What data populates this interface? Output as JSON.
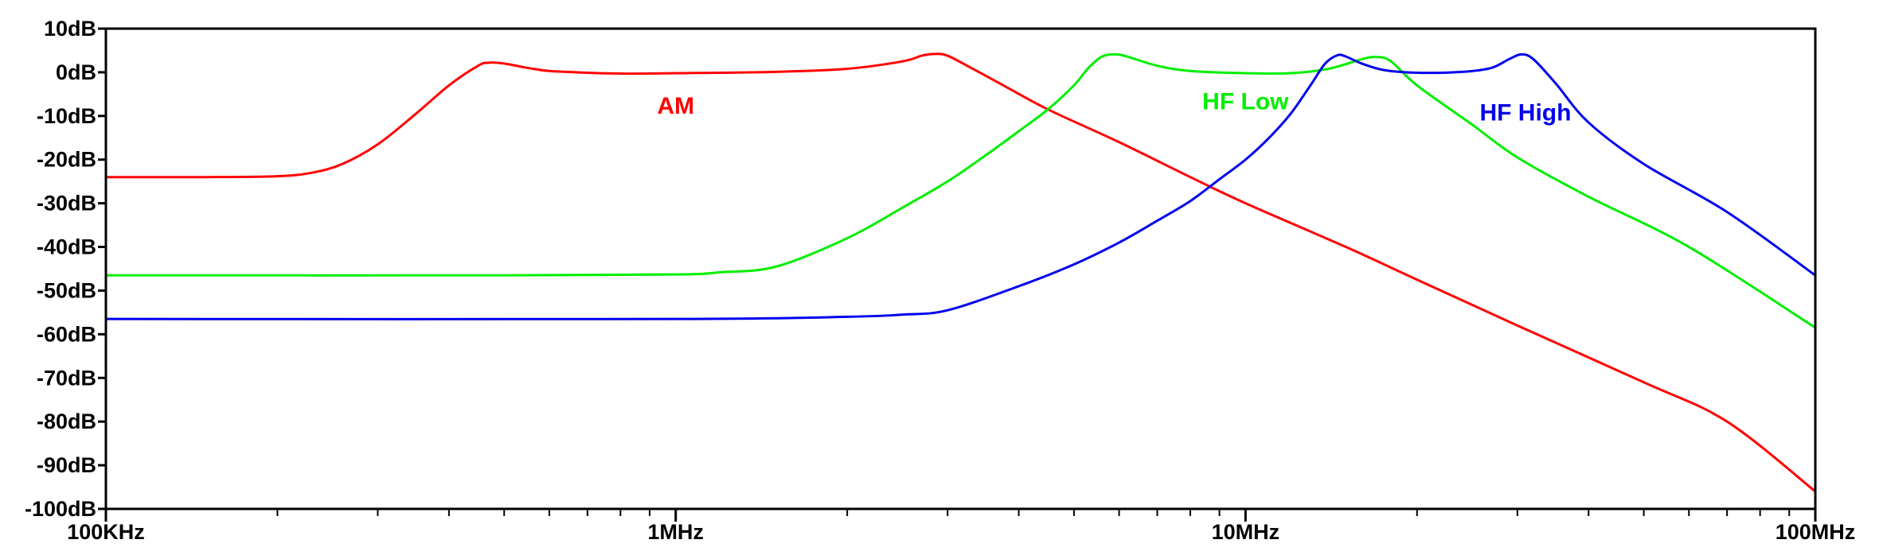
{
  "chart_data": {
    "type": "line",
    "title": "",
    "xlabel": "",
    "ylabel": "",
    "x_scale": "log",
    "xlim": [
      100000,
      100000000
    ],
    "ylim": [
      -100,
      10
    ],
    "grid": false,
    "x_major_ticks": [
      {
        "value": 100000,
        "label": "100KHz"
      },
      {
        "value": 1000000,
        "label": "1MHz"
      },
      {
        "value": 10000000,
        "label": "10MHz"
      },
      {
        "value": 100000000,
        "label": "100MHz"
      }
    ],
    "y_ticks": [
      {
        "value": 10,
        "label": "10dB"
      },
      {
        "value": 0,
        "label": "0dB"
      },
      {
        "value": -10,
        "label": "-10dB"
      },
      {
        "value": -20,
        "label": "-20dB"
      },
      {
        "value": -30,
        "label": "-30dB"
      },
      {
        "value": -40,
        "label": "-40dB"
      },
      {
        "value": -50,
        "label": "-50dB"
      },
      {
        "value": -60,
        "label": "-60dB"
      },
      {
        "value": -70,
        "label": "-70dB"
      },
      {
        "value": -80,
        "label": "-80dB"
      },
      {
        "value": -90,
        "label": "-90dB"
      },
      {
        "value": -100,
        "label": "-100dB"
      }
    ],
    "series": [
      {
        "name": "AM",
        "color": "#ff0000",
        "label_at": {
          "x": 1000000,
          "y": -9.5
        },
        "points": [
          [
            100000,
            -24
          ],
          [
            150000,
            -24
          ],
          [
            200000,
            -23.8
          ],
          [
            230000,
            -23
          ],
          [
            260000,
            -21
          ],
          [
            300000,
            -16.5
          ],
          [
            350000,
            -9.5
          ],
          [
            400000,
            -3
          ],
          [
            450000,
            1.5
          ],
          [
            470000,
            2.2
          ],
          [
            500000,
            2
          ],
          [
            550000,
            1
          ],
          [
            600000,
            0.3
          ],
          [
            700000,
            -0.1
          ],
          [
            800000,
            -0.3
          ],
          [
            1000000,
            -0.2
          ],
          [
            1500000,
            0.1
          ],
          [
            2000000,
            0.8
          ],
          [
            2500000,
            2.5
          ],
          [
            2700000,
            3.8
          ],
          [
            2850000,
            4.2
          ],
          [
            3000000,
            3.8
          ],
          [
            3300000,
            1
          ],
          [
            3700000,
            -2.5
          ],
          [
            4500000,
            -8.5
          ],
          [
            6000000,
            -16
          ],
          [
            8000000,
            -24
          ],
          [
            10000000,
            -30
          ],
          [
            15000000,
            -40
          ],
          [
            20000000,
            -47.5
          ],
          [
            30000000,
            -58
          ],
          [
            50000000,
            -71
          ],
          [
            70000000,
            -80
          ],
          [
            100000000,
            -96
          ]
        ]
      },
      {
        "name": "HF Low",
        "color": "#00ee00",
        "label_at": {
          "x": 10000000,
          "y": -8.5
        },
        "points": [
          [
            100000,
            -46.5
          ],
          [
            500000,
            -46.5
          ],
          [
            1000000,
            -46.3
          ],
          [
            1200000,
            -45.8
          ],
          [
            1500000,
            -44.5
          ],
          [
            2000000,
            -38
          ],
          [
            2500000,
            -31
          ],
          [
            3000000,
            -25
          ],
          [
            3500000,
            -19
          ],
          [
            4000000,
            -13.5
          ],
          [
            4500000,
            -8.5
          ],
          [
            5000000,
            -3
          ],
          [
            5300000,
            1
          ],
          [
            5600000,
            3.6
          ],
          [
            5900000,
            4.1
          ],
          [
            6200000,
            3.6
          ],
          [
            7000000,
            1.5
          ],
          [
            8000000,
            0.3
          ],
          [
            10000000,
            -0.2
          ],
          [
            12000000,
            -0.2
          ],
          [
            14000000,
            0.8
          ],
          [
            16000000,
            3
          ],
          [
            17000000,
            3.5
          ],
          [
            18000000,
            2.5
          ],
          [
            20000000,
            -3
          ],
          [
            25000000,
            -12
          ],
          [
            30000000,
            -19.5
          ],
          [
            40000000,
            -28.5
          ],
          [
            60000000,
            -40
          ],
          [
            100000000,
            -58.5
          ]
        ]
      },
      {
        "name": "HF High",
        "color": "#0000ee",
        "label_at": {
          "x": 31000000,
          "y": -11
        },
        "points": [
          [
            100000,
            -56.5
          ],
          [
            1000000,
            -56.5
          ],
          [
            2000000,
            -56
          ],
          [
            2500000,
            -55.5
          ],
          [
            3000000,
            -54.5
          ],
          [
            4000000,
            -49
          ],
          [
            5000000,
            -44
          ],
          [
            6000000,
            -39
          ],
          [
            7000000,
            -34
          ],
          [
            8000000,
            -29.5
          ],
          [
            9000000,
            -24.5
          ],
          [
            10000000,
            -20
          ],
          [
            11000000,
            -15
          ],
          [
            12000000,
            -9.5
          ],
          [
            13000000,
            -3
          ],
          [
            13800000,
            2
          ],
          [
            14500000,
            3.9
          ],
          [
            15000000,
            3.6
          ],
          [
            16000000,
            2
          ],
          [
            17500000,
            0.5
          ],
          [
            20000000,
            -0.1
          ],
          [
            24000000,
            0.1
          ],
          [
            27000000,
            1
          ],
          [
            29000000,
            3
          ],
          [
            30500000,
            4.1
          ],
          [
            32000000,
            3
          ],
          [
            35000000,
            -2.5
          ],
          [
            40000000,
            -11.5
          ],
          [
            50000000,
            -21
          ],
          [
            70000000,
            -32
          ],
          [
            100000000,
            -46.5
          ]
        ]
      }
    ]
  }
}
